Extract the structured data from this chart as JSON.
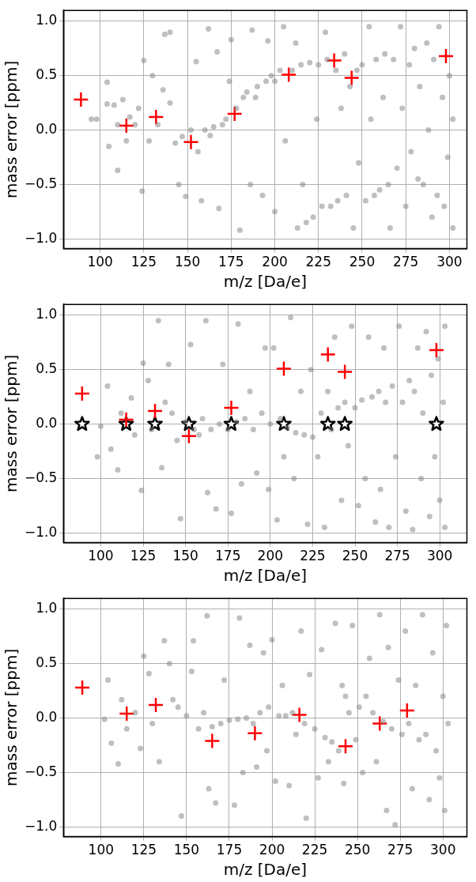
{
  "chart_data": [
    {
      "type": "scatter",
      "xlabel": "m/z [Da/e]",
      "ylabel": "mass error [ppm]",
      "xlim": [
        79,
        310
      ],
      "ylim": [
        -1.09,
        1.1
      ],
      "xticks": [
        100,
        125,
        150,
        175,
        200,
        225,
        250,
        275,
        300
      ],
      "yticks": [
        {
          "value": -1,
          "label": "−1.0"
        },
        {
          "value": -0.5,
          "label": "−0.5"
        },
        {
          "value": 0,
          "label": "0.0"
        },
        {
          "value": 0.5,
          "label": "0.5"
        },
        {
          "value": 1,
          "label": "1.0"
        }
      ],
      "grid": true,
      "legend": false,
      "series": [
        {
          "color": "#808080",
          "marker": "circle",
          "x": [
            95,
            98,
            104,
            104,
            105,
            108,
            110,
            110,
            113,
            115,
            117,
            120,
            122,
            124,
            125,
            128,
            130,
            133,
            136,
            137,
            140,
            140,
            143,
            145,
            147,
            149,
            152,
            155,
            156,
            158,
            160,
            162,
            163,
            165,
            167,
            168,
            170,
            172,
            174,
            175,
            178,
            180,
            182,
            184,
            186,
            187,
            189,
            190,
            193,
            195,
            196,
            198,
            200,
            200,
            203,
            205,
            206,
            210,
            212,
            213,
            215,
            216,
            218,
            220,
            222,
            224,
            225,
            227,
            229,
            230,
            232,
            235,
            236,
            238,
            240,
            241,
            243,
            245,
            247,
            248,
            250,
            252,
            254,
            255,
            257,
            258,
            260,
            262,
            263,
            265,
            266,
            268,
            270,
            272,
            273,
            275,
            277,
            278,
            280,
            282,
            283,
            285,
            287,
            288,
            290,
            291,
            293,
            294,
            296,
            297,
            299,
            300,
            302,
            302
          ],
          "values": [
            0.1,
            0.1,
            0.24,
            0.44,
            -0.15,
            0.23,
            -0.37,
            0.05,
            0.28,
            -0.1,
            0.12,
            0.05,
            0.2,
            -0.56,
            0.64,
            -0.1,
            0.5,
            0.05,
            0.37,
            0.88,
            0.9,
            0.25,
            -0.12,
            -0.5,
            -0.06,
            -0.61,
            0.0,
            0.63,
            -0.2,
            -0.65,
            0.0,
            0.93,
            -0.05,
            0.03,
            0.72,
            -0.72,
            0.05,
            0.1,
            0.45,
            0.83,
            0.2,
            -0.92,
            0.3,
            0.35,
            -0.5,
            0.92,
            0.3,
            0.4,
            -0.6,
            0.45,
            0.82,
            0.5,
            0.45,
            -0.75,
            0.55,
            0.95,
            -0.1,
            0.55,
            0.8,
            -0.9,
            0.6,
            -0.5,
            -0.85,
            0.62,
            -0.8,
            0.1,
            0.6,
            -0.7,
            0.9,
            0.65,
            -0.7,
            0.55,
            -0.65,
            0.2,
            0.7,
            -0.6,
            0.4,
            -0.9,
            0.55,
            -0.3,
            0.6,
            -0.65,
            0.95,
            0.1,
            -0.6,
            0.65,
            -0.55,
            0.3,
            0.7,
            -0.5,
            -0.9,
            0.65,
            -0.35,
            0.95,
            0.2,
            -0.7,
            0.6,
            -0.2,
            0.75,
            -0.45,
            0.4,
            -0.5,
            0.8,
            0.0,
            -0.8,
            0.65,
            -0.6,
            0.95,
            0.3,
            -0.7,
            -0.25,
            0.5,
            -0.9,
            0.1
          ]
        },
        {
          "color": "#ff0000",
          "marker": "cross",
          "x": [
            89,
            115,
            132,
            152,
            177,
            208,
            234,
            244,
            298
          ],
          "values": [
            0.28,
            0.04,
            0.12,
            -0.11,
            0.15,
            0.51,
            0.64,
            0.48,
            0.68
          ]
        }
      ]
    },
    {
      "type": "scatter",
      "xlabel": "m/z [Da/e]",
      "ylabel": "mass error [ppm]",
      "xlim": [
        78,
        316
      ],
      "ylim": [
        -1.09,
        1.1
      ],
      "xticks": [
        100,
        125,
        150,
        175,
        200,
        225,
        250,
        275,
        300
      ],
      "yticks": [
        {
          "value": -1,
          "label": "−1.0"
        },
        {
          "value": -0.5,
          "label": "−0.5"
        },
        {
          "value": 0,
          "label": "0.0"
        },
        {
          "value": 0.5,
          "label": "0.5"
        },
        {
          "value": 1,
          "label": "1.0"
        }
      ],
      "grid": true,
      "legend": false,
      "series": [
        {
          "color": "#808080",
          "marker": "circle",
          "x": [
            98,
            100,
            104,
            106,
            110,
            112,
            118,
            120,
            124,
            125,
            128,
            130,
            134,
            136,
            138,
            140,
            142,
            145,
            147,
            150,
            153,
            155,
            158,
            160,
            162,
            163,
            165,
            168,
            170,
            172,
            175,
            177,
            180,
            181,
            183,
            185,
            188,
            190,
            192,
            195,
            197,
            199,
            200,
            202,
            204,
            206,
            208,
            210,
            212,
            214,
            215,
            218,
            220,
            222,
            224,
            225,
            228,
            230,
            232,
            234,
            236,
            238,
            240,
            242,
            244,
            246,
            248,
            250,
            252,
            254,
            256,
            258,
            260,
            262,
            264,
            265,
            267,
            268,
            270,
            272,
            274,
            276,
            278,
            280,
            282,
            284,
            285,
            287,
            289,
            290,
            292,
            294,
            295,
            297,
            299,
            300,
            302,
            303,
            303
          ],
          "values": [
            -0.3,
            -0.02,
            0.35,
            -0.23,
            -0.42,
            0.1,
            0.24,
            -0.1,
            -0.61,
            0.56,
            0.4,
            -0.05,
            0.95,
            -0.4,
            0.2,
            0.55,
            0.1,
            -0.15,
            -0.87,
            0.02,
            0.73,
            -0.05,
            -0.1,
            0.05,
            0.95,
            -0.63,
            -0.05,
            -0.78,
            0.0,
            0.55,
            -0.05,
            -0.82,
            0.02,
            0.92,
            -0.55,
            0.05,
            0.3,
            -0.05,
            -0.45,
            0.1,
            0.7,
            -0.6,
            0.0,
            0.7,
            -0.88,
            0.05,
            -0.3,
            -0.03,
            0.98,
            -0.5,
            -0.08,
            0.3,
            -0.1,
            -0.92,
            0.5,
            -0.12,
            -0.3,
            0.1,
            -0.95,
            0.3,
            -0.05,
            0.8,
            0.15,
            -0.7,
            0.2,
            -0.2,
            0.9,
            0.15,
            -0.75,
            0.22,
            -0.5,
            0.8,
            0.25,
            -0.9,
            0.3,
            -0.6,
            0.7,
            0.2,
            -0.95,
            0.35,
            -0.3,
            0.9,
            0.2,
            -0.8,
            0.4,
            -0.97,
            0.3,
            0.7,
            -0.5,
            0.1,
            0.85,
            -0.85,
            0.45,
            -0.3,
            0.6,
            -0.7,
            0.2,
            -0.95,
            0.9
          ]
        },
        {
          "color": "#ff0000",
          "marker": "cross",
          "x": [
            89,
            115,
            132,
            152,
            177,
            208,
            234,
            244,
            298
          ],
          "values": [
            0.28,
            0.04,
            0.12,
            -0.11,
            0.15,
            0.51,
            0.64,
            0.48,
            0.68
          ]
        },
        {
          "color": "#000000",
          "marker": "star",
          "x": [
            89,
            115,
            132,
            152,
            177,
            208,
            234,
            244,
            298
          ],
          "values": [
            0,
            0,
            0,
            0,
            0,
            0,
            0,
            0,
            0
          ]
        }
      ]
    },
    {
      "type": "scatter",
      "xlabel": "m/z [Da/e]",
      "ylabel": "mass error [ppm]",
      "xlim": [
        78,
        314
      ],
      "ylim": [
        -1.09,
        1.1
      ],
      "xticks": [
        100,
        125,
        150,
        175,
        200,
        225,
        250,
        275,
        300
      ],
      "yticks": [
        {
          "value": -1,
          "label": "−1.0"
        },
        {
          "value": -0.5,
          "label": "−0.5"
        },
        {
          "value": 0,
          "label": "0.0"
        },
        {
          "value": 0.5,
          "label": "0.5"
        },
        {
          "value": 1,
          "label": "1.0"
        }
      ],
      "grid": true,
      "legend": false,
      "series": [
        {
          "color": "#808080",
          "marker": "circle",
          "x": [
            102,
            104,
            106,
            110,
            112,
            115,
            120,
            123,
            125,
            128,
            130,
            134,
            137,
            140,
            142,
            145,
            147,
            150,
            153,
            154,
            157,
            160,
            162,
            163,
            165,
            167,
            170,
            172,
            175,
            178,
            180,
            181,
            183,
            185,
            187,
            189,
            191,
            193,
            195,
            197,
            198,
            200,
            202,
            204,
            206,
            208,
            210,
            212,
            214,
            217,
            219,
            220,
            222,
            225,
            227,
            229,
            231,
            233,
            235,
            237,
            239,
            241,
            242,
            243,
            245,
            247,
            249,
            251,
            253,
            255,
            257,
            259,
            261,
            263,
            265,
            267,
            268,
            270,
            272,
            274,
            276,
            278,
            280,
            282,
            284,
            286,
            288,
            290,
            292,
            294,
            296,
            298,
            300,
            301,
            302,
            303
          ],
          "values": [
            -0.01,
            0.35,
            -0.23,
            -0.42,
            0.17,
            -0.1,
            0.05,
            -0.28,
            0.57,
            0.41,
            -0.05,
            -0.4,
            0.71,
            0.5,
            0.17,
            0.1,
            -0.9,
            0.02,
            0.43,
            0.71,
            -0.1,
            0.05,
            0.94,
            -0.65,
            -0.08,
            -0.78,
            -0.05,
            0.35,
            -0.02,
            -0.8,
            -0.01,
            0.92,
            -0.5,
            0.0,
            0.67,
            -0.05,
            -0.45,
            0.05,
            0.6,
            -0.3,
            0.1,
            0.72,
            -0.58,
            0.02,
            0.3,
            0.02,
            -0.62,
            0.05,
            -0.15,
            0.8,
            -0.05,
            -0.92,
            0.4,
            -0.1,
            -0.55,
            0.63,
            -0.18,
            -0.4,
            -0.22,
            0.87,
            -0.3,
            0.3,
            -0.6,
            0.2,
            0.05,
            0.85,
            -0.2,
            0.1,
            -0.5,
            0.2,
            0.55,
            0.05,
            -0.4,
            0.95,
            -0.03,
            -0.85,
            0.65,
            -0.1,
            -0.98,
            0.35,
            -0.15,
            0.8,
            -0.05,
            -0.65,
            0.3,
            -0.2,
            0.95,
            -0.15,
            -0.75,
            0.6,
            -0.3,
            -0.55,
            0.2,
            -0.85,
            0.85,
            -0.05
          ]
        },
        {
          "color": "#ff0000",
          "marker": "cross",
          "x": [
            89,
            115,
            132,
            165,
            190,
            216,
            243,
            263,
            279
          ],
          "values": [
            0.28,
            0.04,
            0.12,
            -0.21,
            -0.14,
            0.03,
            -0.26,
            -0.05,
            0.07
          ]
        }
      ]
    }
  ]
}
